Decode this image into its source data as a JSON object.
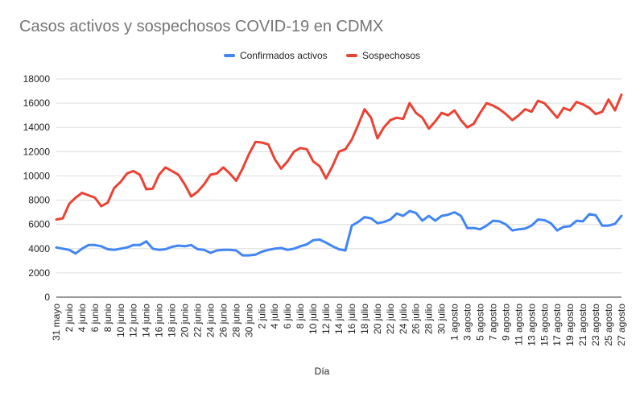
{
  "chart_data": {
    "type": "line",
    "title": "Casos activos y sospechosos COVID-19 en CDMX",
    "xlabel": "Día",
    "ylabel": "",
    "ylim": [
      0,
      18000
    ],
    "yticks": [
      0,
      2000,
      4000,
      6000,
      8000,
      10000,
      12000,
      14000,
      16000,
      18000
    ],
    "grid": true,
    "legend": "top",
    "x": [
      "31 mayo",
      "1 junio",
      "2 junio",
      "3 junio",
      "4 junio",
      "5 junio",
      "6 junio",
      "7 junio",
      "8 junio",
      "9 junio",
      "10 junio",
      "11 junio",
      "12 junio",
      "13 junio",
      "14 junio",
      "15 junio",
      "16 junio",
      "17 junio",
      "18 junio",
      "19 junio",
      "20 junio",
      "21 junio",
      "22 junio",
      "23 junio",
      "24 junio",
      "25 junio",
      "26 junio",
      "27 junio",
      "28 junio",
      "29 junio",
      "30 junio",
      "1 julio",
      "2 julio",
      "3 julio",
      "4 julio",
      "5 julio",
      "6 julio",
      "7 julio",
      "8 julio",
      "9 julio",
      "10 julio",
      "11 julio",
      "12 julio",
      "13 julio",
      "14 julio",
      "15 julio",
      "16 julio",
      "17 julio",
      "18 julio",
      "19 julio",
      "20 julio",
      "21 julio",
      "22 julio",
      "23 julio",
      "24 julio",
      "25 julio",
      "26 julio",
      "27 julio",
      "28 julio",
      "29 julio",
      "30 julio",
      "31 julio",
      "1 agosto",
      "2 agosto",
      "3 agosto",
      "4 agosto",
      "5 agosto",
      "6 agosto",
      "7 agosto",
      "8 agosto",
      "9 agosto",
      "10 agosto",
      "11 agosto",
      "12 agosto",
      "13 agosto",
      "14 agosto",
      "15 agosto",
      "16 agosto",
      "17 agosto",
      "18 agosto",
      "19 agosto",
      "20 agosto",
      "21 agosto",
      "22 agosto",
      "23 agosto",
      "24 agosto",
      "25 agosto",
      "26 agosto",
      "27 agosto"
    ],
    "x_tick_labels": [
      "31 mayo",
      "2 junio",
      "4 junio",
      "6 junio",
      "8 junio",
      "10 junio",
      "12 junio",
      "14 junio",
      "16 junio",
      "18 junio",
      "20 junio",
      "22 junio",
      "24 junio",
      "26 junio",
      "28 junio",
      "30 junio",
      "2 julio",
      "4 julio",
      "6 julio",
      "8 julio",
      "10 julio",
      "12 julio",
      "14 julio",
      "16 julio",
      "18 julio",
      "20 julio",
      "22 julio",
      "24 julio",
      "26 julio",
      "28 julio",
      "30 julio",
      "1 agosto",
      "3 agosto",
      "5 agosto",
      "7 agosto",
      "9 agosto",
      "11 agosto",
      "13 agosto",
      "15 agosto",
      "17 agosto",
      "19 agosto",
      "21 agosto",
      "23 agosto",
      "25 agosto",
      "27 agosto"
    ],
    "series": [
      {
        "name": "Confirmados activos",
        "color": "#4285f4",
        "values": [
          4100,
          4000,
          3900,
          3600,
          4000,
          4300,
          4300,
          4200,
          3950,
          3900,
          4000,
          4100,
          4300,
          4300,
          4600,
          4000,
          3900,
          3950,
          4150,
          4250,
          4200,
          4300,
          3950,
          3900,
          3650,
          3850,
          3900,
          3900,
          3850,
          3450,
          3450,
          3500,
          3750,
          3900,
          4000,
          4050,
          3900,
          4000,
          4200,
          4350,
          4700,
          4750,
          4500,
          4200,
          3950,
          3850,
          5900,
          6200,
          6600,
          6500,
          6100,
          6200,
          6400,
          6900,
          6700,
          7100,
          6950,
          6300,
          6700,
          6300,
          6700,
          6800,
          7000,
          6700,
          5700,
          5700,
          5600,
          5900,
          6300,
          6250,
          6000,
          5500,
          5600,
          5650,
          5900,
          6400,
          6350,
          6100,
          5500,
          5800,
          5850,
          6300,
          6250,
          6850,
          6750,
          5900,
          5900,
          6050,
          6700
        ]
      },
      {
        "name": "Sospechosos",
        "color": "#ea4335",
        "values": [
          6400,
          6500,
          7700,
          8200,
          8600,
          8400,
          8200,
          7500,
          7800,
          9000,
          9500,
          10200,
          10400,
          10100,
          8900,
          8950,
          10100,
          10700,
          10400,
          10100,
          9300,
          8300,
          8700,
          9300,
          10100,
          10200,
          10700,
          10200,
          9600,
          10600,
          11800,
          12800,
          12750,
          12600,
          11400,
          10600,
          11200,
          12000,
          12300,
          12200,
          11200,
          10800,
          9800,
          10800,
          12000,
          12200,
          13000,
          14200,
          15500,
          14800,
          13100,
          14000,
          14600,
          14800,
          14700,
          16000,
          15200,
          14800,
          13900,
          14500,
          15200,
          15000,
          15400,
          14600,
          14000,
          14300,
          15200,
          16000,
          15800,
          15500,
          15100,
          14600,
          15000,
          15500,
          15300,
          16200,
          16000,
          15400,
          14800,
          15600,
          15400,
          16100,
          15900,
          15600,
          15100,
          15300,
          16300,
          15400,
          16700
        ]
      }
    ]
  }
}
